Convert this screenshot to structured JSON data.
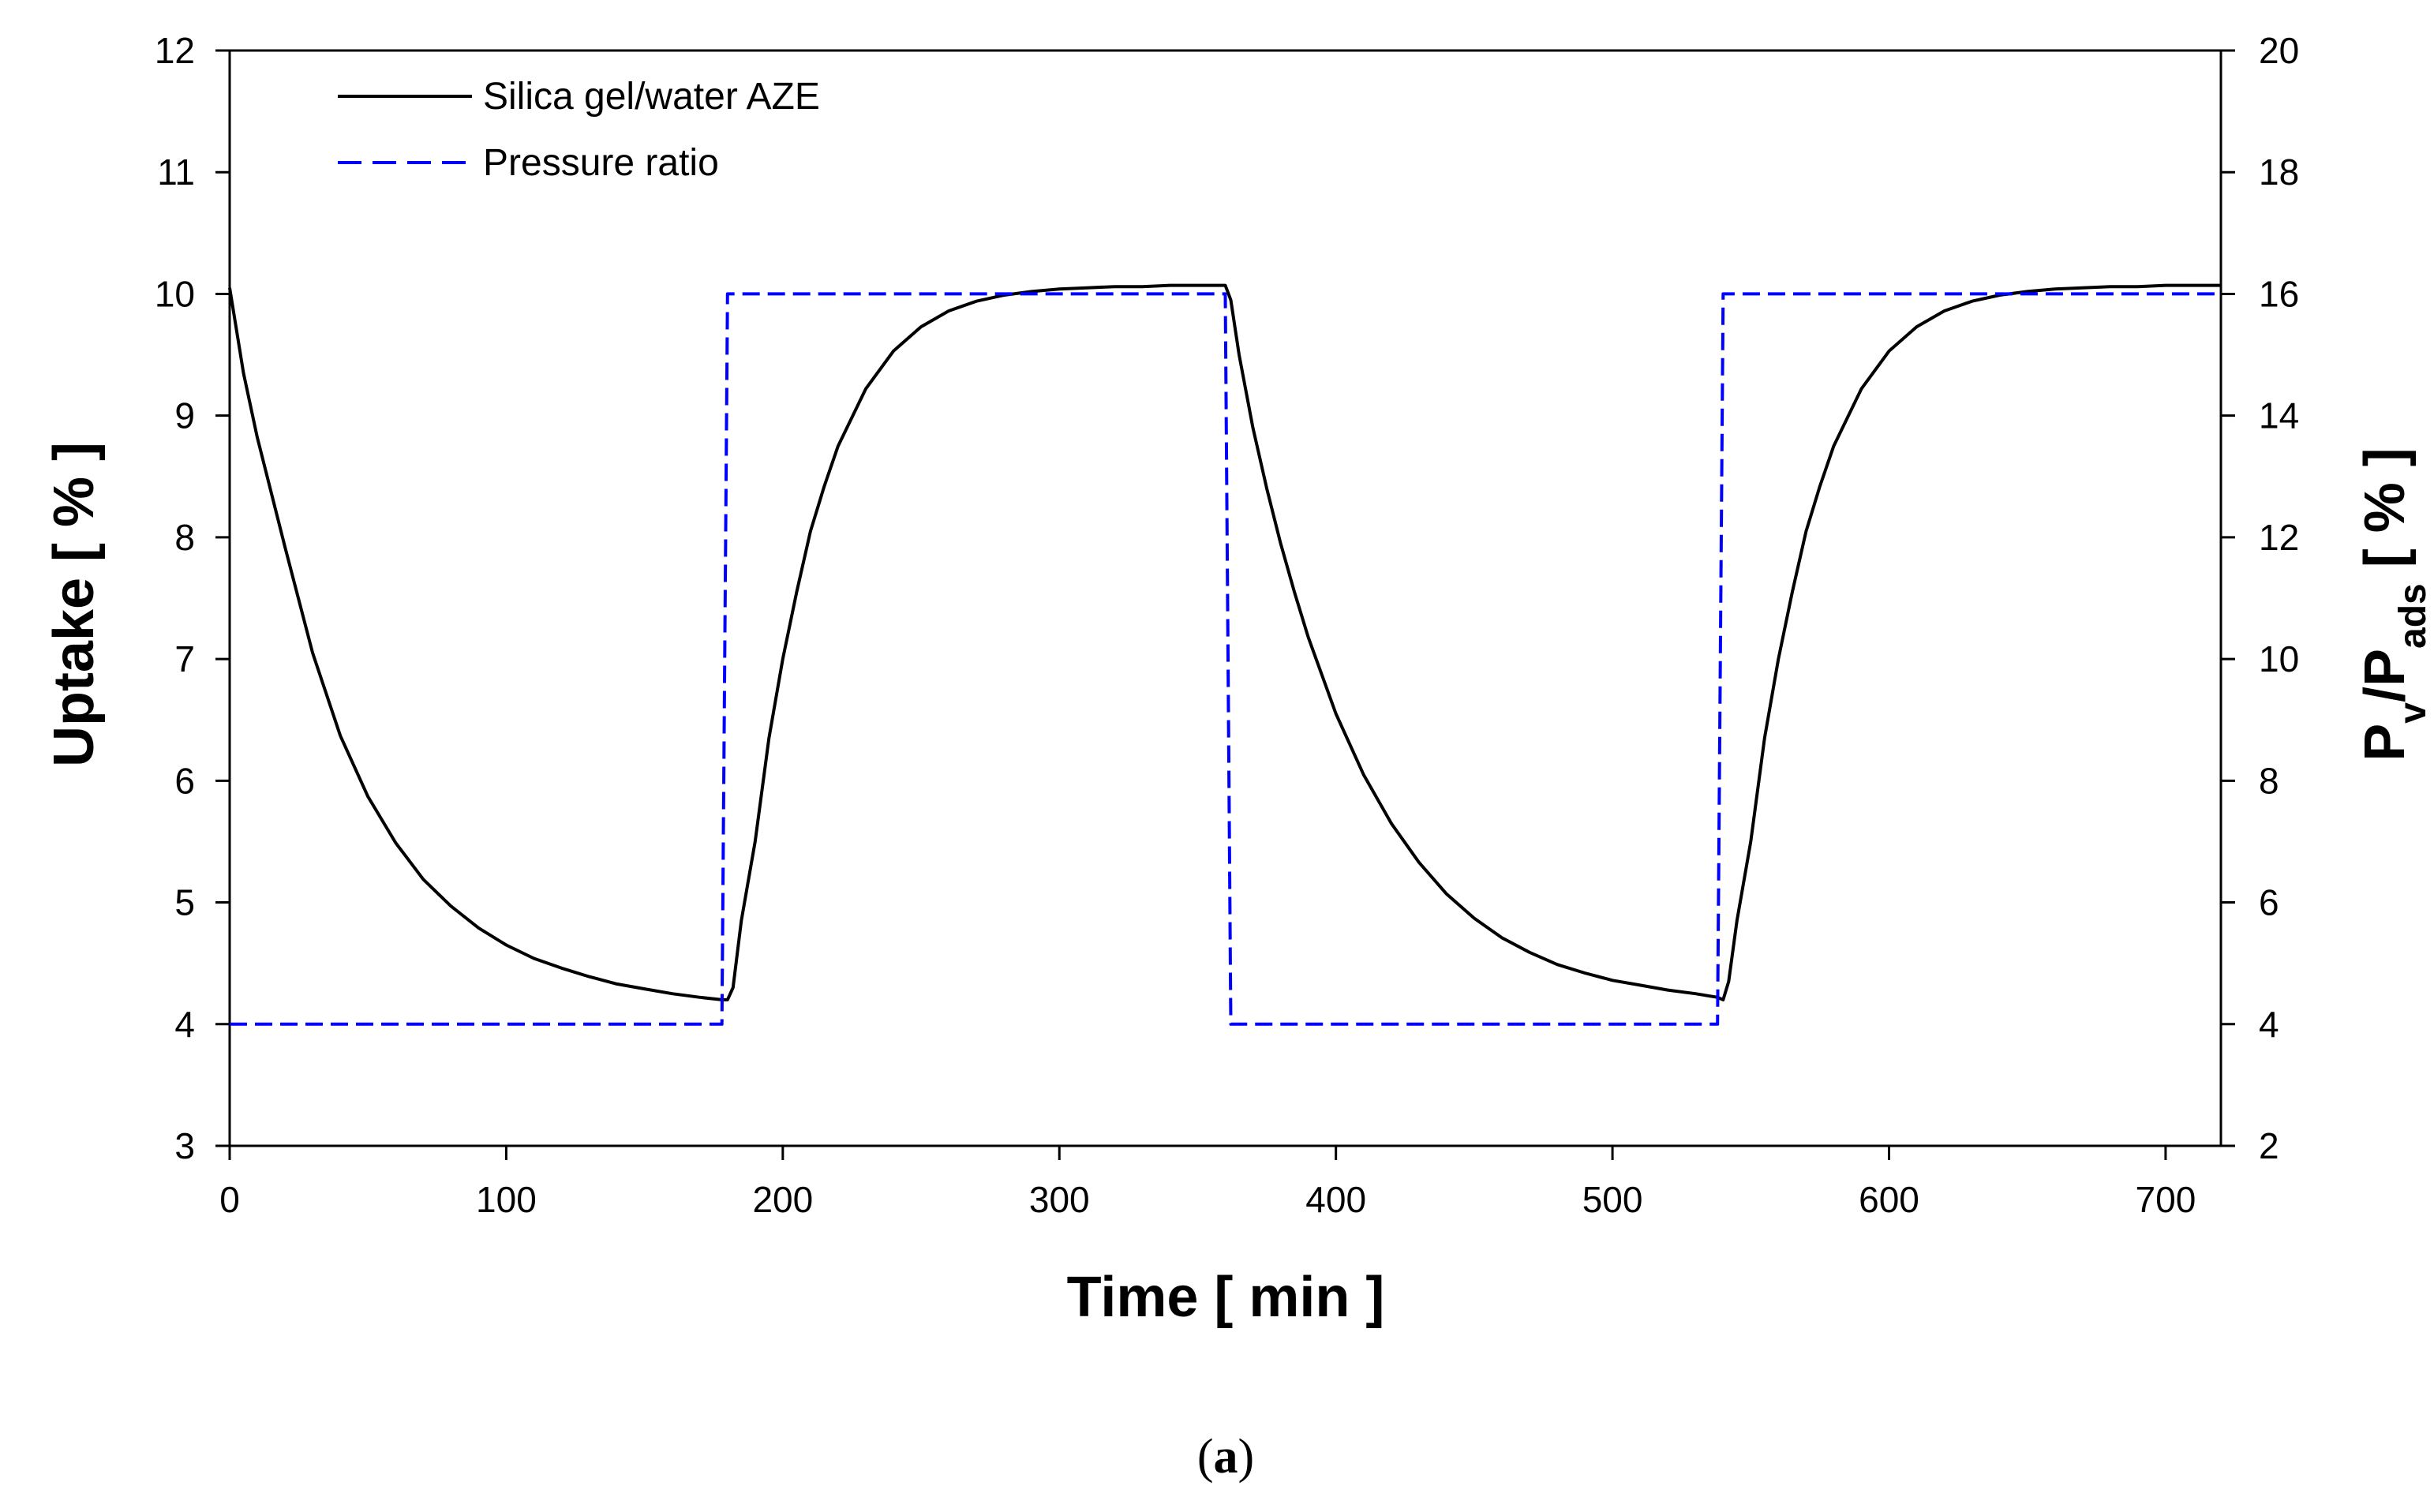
{
  "chart_data": {
    "type": "line",
    "title": "",
    "panel_label": {
      "open": "(",
      "letter": "a",
      "close": ")"
    },
    "xlabel": "Time [ min ]",
    "ylabel": "Uptake [ % ]",
    "y2label": {
      "main1": "P",
      "sub1": "v",
      "slash": "/P",
      "sub2": "ads",
      "unit": " [ % ]"
    },
    "xlim": [
      0,
      720
    ],
    "ylim": [
      3,
      12
    ],
    "y2lim": [
      2,
      20
    ],
    "xticks": [
      0,
      100,
      200,
      300,
      400,
      500,
      600,
      700
    ],
    "yticks": [
      3,
      4,
      5,
      6,
      7,
      8,
      9,
      10,
      11,
      12
    ],
    "y2ticks": [
      2,
      4,
      6,
      8,
      10,
      12,
      14,
      16,
      18,
      20
    ],
    "grid": false,
    "legend_position": "top-left",
    "colors": {
      "uptake": "#000000",
      "pressure": "#0000ff",
      "axis": "#000000"
    },
    "series": [
      {
        "name": "Silica gel/water AZE",
        "axis": "left",
        "style": "solid",
        "x": [
          0,
          5,
          10,
          20,
          30,
          40,
          50,
          60,
          70,
          80,
          90,
          100,
          110,
          120,
          130,
          140,
          150,
          160,
          170,
          178,
          180,
          182,
          185,
          190,
          195,
          200,
          205,
          210,
          215,
          220,
          230,
          240,
          250,
          260,
          270,
          280,
          290,
          300,
          310,
          320,
          330,
          340,
          350,
          358,
          360,
          362,
          365,
          370,
          375,
          380,
          385,
          390,
          400,
          410,
          420,
          430,
          440,
          450,
          460,
          470,
          480,
          490,
          500,
          510,
          520,
          530,
          538,
          540,
          542,
          545,
          550,
          555,
          560,
          565,
          570,
          575,
          580,
          590,
          600,
          610,
          620,
          630,
          640,
          650,
          660,
          670,
          680,
          690,
          700,
          710,
          720
        ],
        "values": [
          10.05,
          9.35,
          8.82,
          7.92,
          7.05,
          6.37,
          5.87,
          5.49,
          5.19,
          4.97,
          4.79,
          4.65,
          4.54,
          4.46,
          4.39,
          4.33,
          4.29,
          4.25,
          4.22,
          4.2,
          4.2,
          4.3,
          4.85,
          5.5,
          6.35,
          7.0,
          7.55,
          8.05,
          8.42,
          8.75,
          9.22,
          9.53,
          9.73,
          9.86,
          9.94,
          9.99,
          10.02,
          10.04,
          10.05,
          10.06,
          10.06,
          10.07,
          10.07,
          10.07,
          10.07,
          9.95,
          9.5,
          8.9,
          8.4,
          7.95,
          7.55,
          7.18,
          6.55,
          6.05,
          5.65,
          5.33,
          5.07,
          4.87,
          4.71,
          4.59,
          4.49,
          4.42,
          4.36,
          4.32,
          4.28,
          4.25,
          4.22,
          4.2,
          4.35,
          4.85,
          5.5,
          6.35,
          7.0,
          7.55,
          8.05,
          8.42,
          8.75,
          9.22,
          9.53,
          9.73,
          9.86,
          9.94,
          9.99,
          10.02,
          10.04,
          10.05,
          10.06,
          10.06,
          10.07,
          10.07,
          10.07
        ]
      },
      {
        "name": "Pressure ratio",
        "axis": "right",
        "style": "dashed",
        "x": [
          0,
          178,
          180,
          360,
          362,
          538,
          540,
          720
        ],
        "values": [
          4,
          4,
          16,
          16,
          4,
          4,
          16,
          16
        ]
      }
    ]
  }
}
